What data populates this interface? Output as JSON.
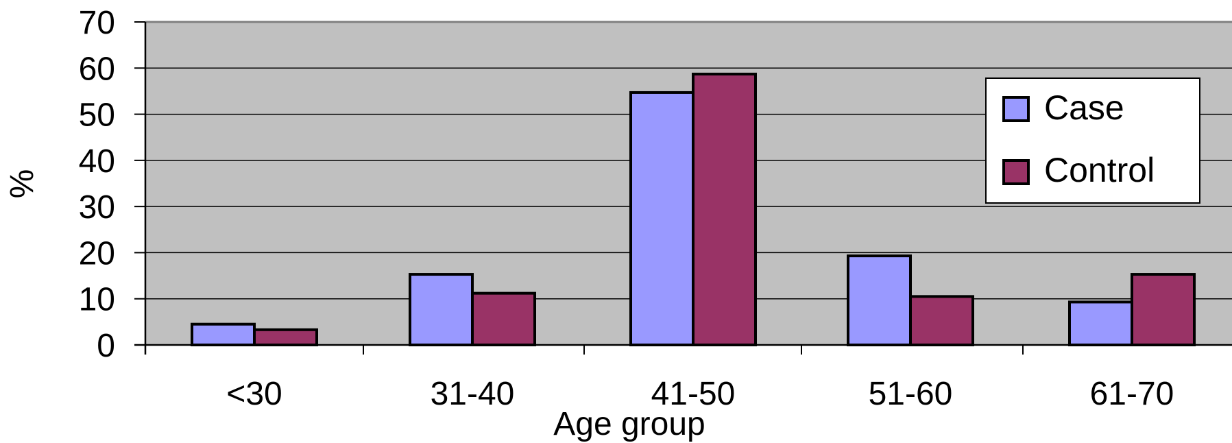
{
  "chart_data": {
    "type": "bar",
    "xlabel": "Age group",
    "ylabel": "%",
    "ylim": [
      0,
      70
    ],
    "yticks": [
      0,
      10,
      20,
      30,
      40,
      50,
      60,
      70
    ],
    "categories": [
      "<30",
      "31-40",
      "41-50",
      "51-60",
      "61-70"
    ],
    "series": [
      {
        "name": "Case",
        "color": "#9999ff",
        "values": [
          4.5,
          15.3,
          54.7,
          19.3,
          9.3
        ]
      },
      {
        "name": "Control",
        "color": "#993366",
        "values": [
          3.3,
          11.2,
          58.7,
          10.5,
          15.3
        ]
      }
    ],
    "grid": true,
    "legend": "top-right",
    "plot_background": "#c0c0c0"
  }
}
